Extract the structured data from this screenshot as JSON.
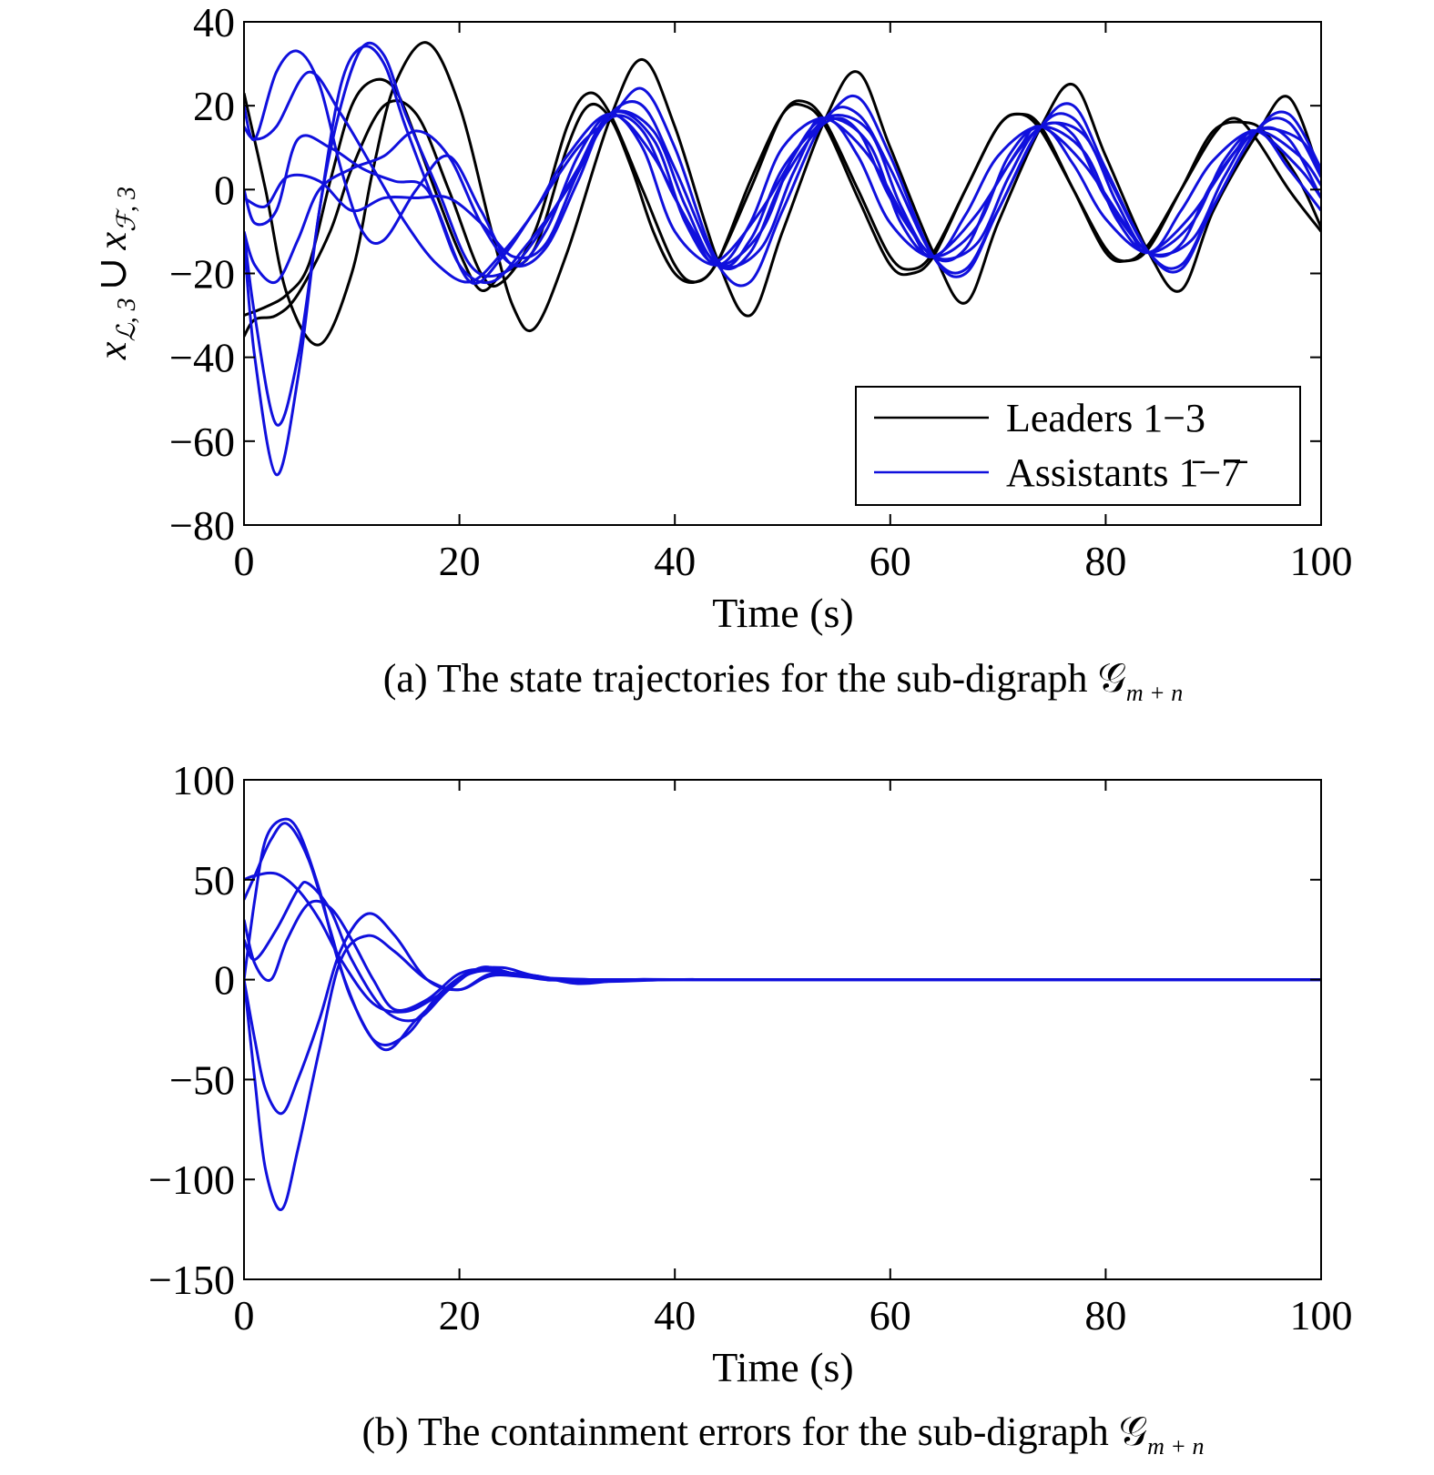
{
  "chart_data": [
    {
      "type": "line",
      "caption": "(a) The state trajectories for the sub-digraph 𝒢",
      "caption_subscript": "m + n",
      "xlabel": "Time (s)",
      "ylabel_parts": {
        "x1": "x",
        "sub1": "ℒ, 3",
        "cup": "∪",
        "x2": "x",
        "sub2": "ℱ, 3"
      },
      "xlim": [
        0,
        100
      ],
      "ylim": [
        -80,
        40
      ],
      "xticks": [
        0,
        20,
        40,
        60,
        80,
        100
      ],
      "yticks": [
        -80,
        -60,
        -40,
        -20,
        0,
        20,
        40
      ],
      "xtick_labels": [
        "0",
        "20",
        "40",
        "60",
        "80",
        "100"
      ],
      "ytick_labels": [
        "−80",
        "−60",
        "−40",
        "−20",
        "0",
        "20",
        "40"
      ],
      "legend": {
        "placement": "bottom-right",
        "entries": [
          {
            "label": "Leaders 1−3",
            "color": "#000000"
          },
          {
            "label": "Assistants 1̄−7̄",
            "color": "#1010dd"
          }
        ]
      },
      "series": [
        {
          "group": "leaders",
          "color": "#000000",
          "x": [
            0,
            2,
            4,
            6,
            8,
            10,
            12,
            14,
            16,
            18,
            20,
            22,
            24,
            27,
            30,
            32,
            34,
            36,
            38,
            40,
            42,
            44,
            47,
            50,
            52,
            54,
            57,
            60,
            62,
            64,
            67,
            70,
            72,
            74,
            77,
            80,
            82,
            84,
            87,
            90,
            93,
            95,
            98,
            100
          ],
          "y": [
            -30,
            -28,
            -25,
            -18,
            2,
            20,
            26,
            24,
            12,
            -2,
            -15,
            -24,
            -20,
            -14,
            10,
            20,
            17,
            5,
            -10,
            -20,
            -22,
            -17,
            2,
            18,
            20,
            15,
            -2,
            -18,
            -20,
            -16,
            0,
            15,
            18,
            15,
            0,
            -15,
            -17,
            -14,
            0,
            14,
            16,
            13,
            2,
            -9
          ]
        },
        {
          "group": "leaders",
          "color": "#000000",
          "x": [
            0,
            2,
            4,
            7,
            10,
            12,
            14,
            17,
            20,
            23,
            25,
            27,
            30,
            34,
            37,
            40,
            44,
            47,
            50,
            54,
            57,
            60,
            64,
            67,
            70,
            74,
            77,
            80,
            84,
            87,
            90,
            94,
            97,
            100
          ],
          "y": [
            23,
            0,
            -25,
            -37,
            -20,
            5,
            25,
            35,
            20,
            -10,
            -28,
            -33,
            -15,
            17,
            31,
            15,
            -17,
            -30,
            -10,
            17,
            28,
            10,
            -15,
            -27,
            -8,
            15,
            25,
            8,
            -15,
            -24,
            -5,
            13,
            22,
            3
          ]
        },
        {
          "group": "leaders",
          "color": "#000000",
          "x": [
            0,
            1,
            3,
            5,
            8,
            10,
            13,
            16,
            19,
            22,
            24,
            27,
            30,
            32,
            34,
            37,
            40,
            42,
            44,
            47,
            50,
            52,
            54,
            57,
            60,
            62,
            64,
            67,
            70,
            72,
            74,
            77,
            80,
            82,
            84,
            87,
            90,
            92,
            94,
            97,
            100
          ],
          "y": [
            -35,
            -31,
            -30,
            -25,
            -10,
            5,
            20,
            18,
            0,
            -20,
            -22,
            -10,
            15,
            23,
            18,
            0,
            -18,
            -22,
            -17,
            0,
            18,
            21,
            16,
            0,
            -16,
            -19,
            -15,
            0,
            15,
            18,
            14,
            0,
            -14,
            -17,
            -13,
            0,
            13,
            17,
            12,
            0,
            -10
          ]
        },
        {
          "group": "assistants",
          "color": "#1010dd",
          "x": [
            0,
            1,
            3,
            5,
            7,
            9,
            11,
            13,
            16,
            19,
            22,
            25,
            28,
            31,
            34,
            37,
            40,
            44,
            47,
            50,
            54,
            57,
            60,
            64,
            67,
            70,
            74,
            77,
            80,
            84,
            87,
            90,
            94,
            97,
            100
          ],
          "y": [
            20,
            12,
            28,
            33,
            25,
            5,
            -10,
            -12,
            0,
            8,
            -5,
            -18,
            -10,
            8,
            18,
            10,
            -10,
            -18,
            -8,
            10,
            17,
            8,
            -8,
            -16,
            -6,
            8,
            15,
            6,
            -7,
            -15,
            -5,
            7,
            14,
            5,
            -5
          ]
        },
        {
          "group": "assistants",
          "color": "#1010dd",
          "x": [
            0,
            1,
            3,
            5,
            7,
            9,
            11,
            13,
            15,
            18,
            21,
            24,
            27,
            31,
            34,
            37,
            40,
            44,
            47,
            50,
            54,
            57,
            60,
            64,
            67,
            70,
            74,
            77,
            80,
            84,
            87,
            90,
            94,
            97,
            100
          ],
          "y": [
            -10,
            -30,
            -56,
            -40,
            -5,
            25,
            34,
            30,
            15,
            -5,
            -22,
            -16,
            -5,
            10,
            17,
            24,
            10,
            -17,
            -12,
            5,
            17,
            22,
            8,
            -16,
            -20,
            -5,
            15,
            20,
            5,
            -15,
            -19,
            -4,
            14,
            18,
            5
          ]
        },
        {
          "group": "assistants",
          "color": "#1010dd",
          "x": [
            0,
            1,
            3,
            5,
            7,
            9,
            11,
            13,
            15,
            18,
            21,
            24,
            27,
            31,
            34,
            37,
            40,
            44,
            47,
            50,
            54,
            57,
            60,
            64,
            67,
            70,
            74,
            77,
            80,
            84,
            87,
            90,
            94,
            97,
            100
          ],
          "y": [
            -12,
            -40,
            -68,
            -45,
            -5,
            20,
            34,
            32,
            18,
            0,
            -18,
            -20,
            -12,
            5,
            18,
            20,
            5,
            -18,
            -22,
            -5,
            17,
            18,
            5,
            -16,
            -19,
            -5,
            15,
            17,
            4,
            -15,
            -18,
            -4,
            14,
            16,
            3
          ]
        },
        {
          "group": "assistants",
          "color": "#1010dd",
          "x": [
            0,
            1,
            3,
            6,
            9,
            12,
            15,
            18,
            21,
            24,
            27,
            30,
            34,
            38,
            42,
            44,
            48,
            52,
            54,
            58,
            62,
            64,
            68,
            72,
            74,
            78,
            82,
            84,
            88,
            92,
            94,
            98,
            100
          ],
          "y": [
            15,
            12,
            15,
            28,
            18,
            5,
            -8,
            -18,
            -22,
            -15,
            -5,
            8,
            18,
            8,
            -12,
            -17,
            -5,
            12,
            17,
            8,
            -10,
            -16,
            -6,
            10,
            15,
            6,
            -9,
            -15,
            -6,
            9,
            14,
            5,
            -2
          ]
        },
        {
          "group": "assistants",
          "color": "#1010dd",
          "x": [
            0,
            1,
            3,
            5,
            8,
            11,
            14,
            17,
            20,
            23,
            26,
            30,
            34,
            38,
            41,
            44,
            48,
            51,
            54,
            58,
            61,
            64,
            68,
            71,
            74,
            78,
            81,
            84,
            88,
            91,
            94,
            98,
            100
          ],
          "y": [
            0,
            -8,
            -5,
            12,
            10,
            5,
            2,
            0,
            -18,
            -22,
            -14,
            0,
            18,
            12,
            -8,
            -18,
            -10,
            8,
            17,
            11,
            -8,
            -16,
            -9,
            8,
            15,
            9,
            -7,
            -15,
            -8,
            7,
            14,
            8,
            1
          ]
        },
        {
          "group": "assistants",
          "color": "#1010dd",
          "x": [
            0,
            1,
            3,
            5,
            7,
            10,
            13,
            16,
            19,
            22,
            25,
            28,
            31,
            34,
            38,
            41,
            44,
            48,
            51,
            54,
            58,
            61,
            64,
            68,
            71,
            74,
            78,
            81,
            84,
            88,
            91,
            94,
            98,
            100
          ],
          "y": [
            -10,
            -18,
            -22,
            -12,
            0,
            5,
            8,
            14,
            8,
            -8,
            -18,
            -14,
            2,
            18,
            14,
            -4,
            -18,
            -14,
            4,
            17,
            14,
            -4,
            -16,
            -13,
            3,
            15,
            13,
            -3,
            -15,
            -12,
            3,
            14,
            12,
            4
          ]
        },
        {
          "group": "assistants",
          "color": "#1010dd",
          "x": [
            0,
            2,
            4,
            7,
            10,
            13,
            16,
            19,
            22,
            25,
            28,
            31,
            34,
            37,
            40,
            44,
            47,
            50,
            54,
            57,
            60,
            64,
            67,
            70,
            74,
            77,
            80,
            84,
            87,
            90,
            94,
            97,
            100
          ],
          "y": [
            -2,
            -4,
            3,
            2,
            -5,
            -2,
            -2,
            -2,
            -8,
            -16,
            -13,
            4,
            17,
            14,
            -2,
            -18,
            -15,
            2,
            16,
            14,
            -2,
            -16,
            -14,
            2,
            15,
            13,
            -2,
            -15,
            -13,
            2,
            14,
            12,
            -2
          ]
        }
      ]
    },
    {
      "type": "line",
      "caption": "(b) The containment errors for the sub-digraph 𝒢",
      "caption_subscript": "m + n",
      "xlabel": "Time (s)",
      "xlim": [
        0,
        100
      ],
      "ylim": [
        -150,
        100
      ],
      "xticks": [
        0,
        20,
        40,
        60,
        80,
        100
      ],
      "yticks": [
        -150,
        -100,
        -50,
        0,
        50,
        100
      ],
      "xtick_labels": [
        "0",
        "20",
        "40",
        "60",
        "80",
        "100"
      ],
      "ytick_labels": [
        "−150",
        "−100",
        "−50",
        "0",
        "50",
        "100"
      ],
      "series": [
        {
          "color": "#1010dd",
          "x": [
            0,
            1,
            2,
            3.5,
            5,
            7,
            9,
            12,
            15,
            18,
            21,
            24,
            27,
            32,
            40,
            50,
            100
          ],
          "y": [
            0,
            40,
            70,
            80,
            75,
            45,
            5,
            -30,
            -28,
            -8,
            4,
            6,
            2,
            -1,
            0,
            0,
            0
          ]
        },
        {
          "color": "#1010dd",
          "x": [
            0,
            1,
            2.5,
            4,
            6,
            8,
            10,
            13,
            16,
            19,
            22,
            25,
            29,
            35,
            45,
            100
          ],
          "y": [
            40,
            52,
            70,
            78,
            60,
            25,
            -10,
            -35,
            -20,
            -5,
            6,
            3,
            0,
            0,
            0,
            0
          ]
        },
        {
          "color": "#1010dd",
          "x": [
            0,
            1,
            3,
            5,
            7,
            9,
            12,
            15,
            18,
            21,
            24,
            28,
            35,
            45,
            100
          ],
          "y": [
            50,
            52,
            53,
            45,
            30,
            10,
            -12,
            -16,
            -8,
            3,
            4,
            0,
            0,
            0,
            0
          ]
        },
        {
          "color": "#1010dd",
          "x": [
            0,
            1,
            3,
            5,
            6,
            8,
            10,
            13,
            16,
            19,
            22,
            25,
            29,
            35,
            100
          ],
          "y": [
            20,
            10,
            25,
            45,
            48,
            35,
            10,
            -15,
            -20,
            -5,
            6,
            3,
            0,
            0,
            0
          ]
        },
        {
          "color": "#1010dd",
          "x": [
            0,
            1,
            2.5,
            4,
            6,
            8,
            10,
            12,
            14,
            17,
            20,
            23,
            27,
            33,
            40,
            100
          ],
          "y": [
            30,
            8,
            0,
            20,
            38,
            36,
            20,
            0,
            -15,
            -10,
            3,
            5,
            1,
            0,
            0,
            0
          ]
        },
        {
          "color": "#1010dd",
          "x": [
            0,
            1,
            2,
            3.5,
            5,
            7,
            9,
            11.5,
            14,
            17,
            20,
            23,
            27,
            33,
            40,
            100
          ],
          "y": [
            0,
            -30,
            -55,
            -67,
            -50,
            -20,
            15,
            33,
            22,
            0,
            -5,
            2,
            1,
            0,
            0,
            0
          ]
        },
        {
          "color": "#1010dd",
          "x": [
            0,
            1,
            2,
            3.5,
            5,
            7,
            9,
            11.5,
            14,
            17,
            20,
            23,
            27,
            31,
            36,
            45,
            100
          ],
          "y": [
            0,
            -50,
            -95,
            -115,
            -85,
            -35,
            10,
            22,
            14,
            0,
            -5,
            3,
            2,
            -2,
            0,
            0,
            0
          ]
        }
      ]
    }
  ]
}
